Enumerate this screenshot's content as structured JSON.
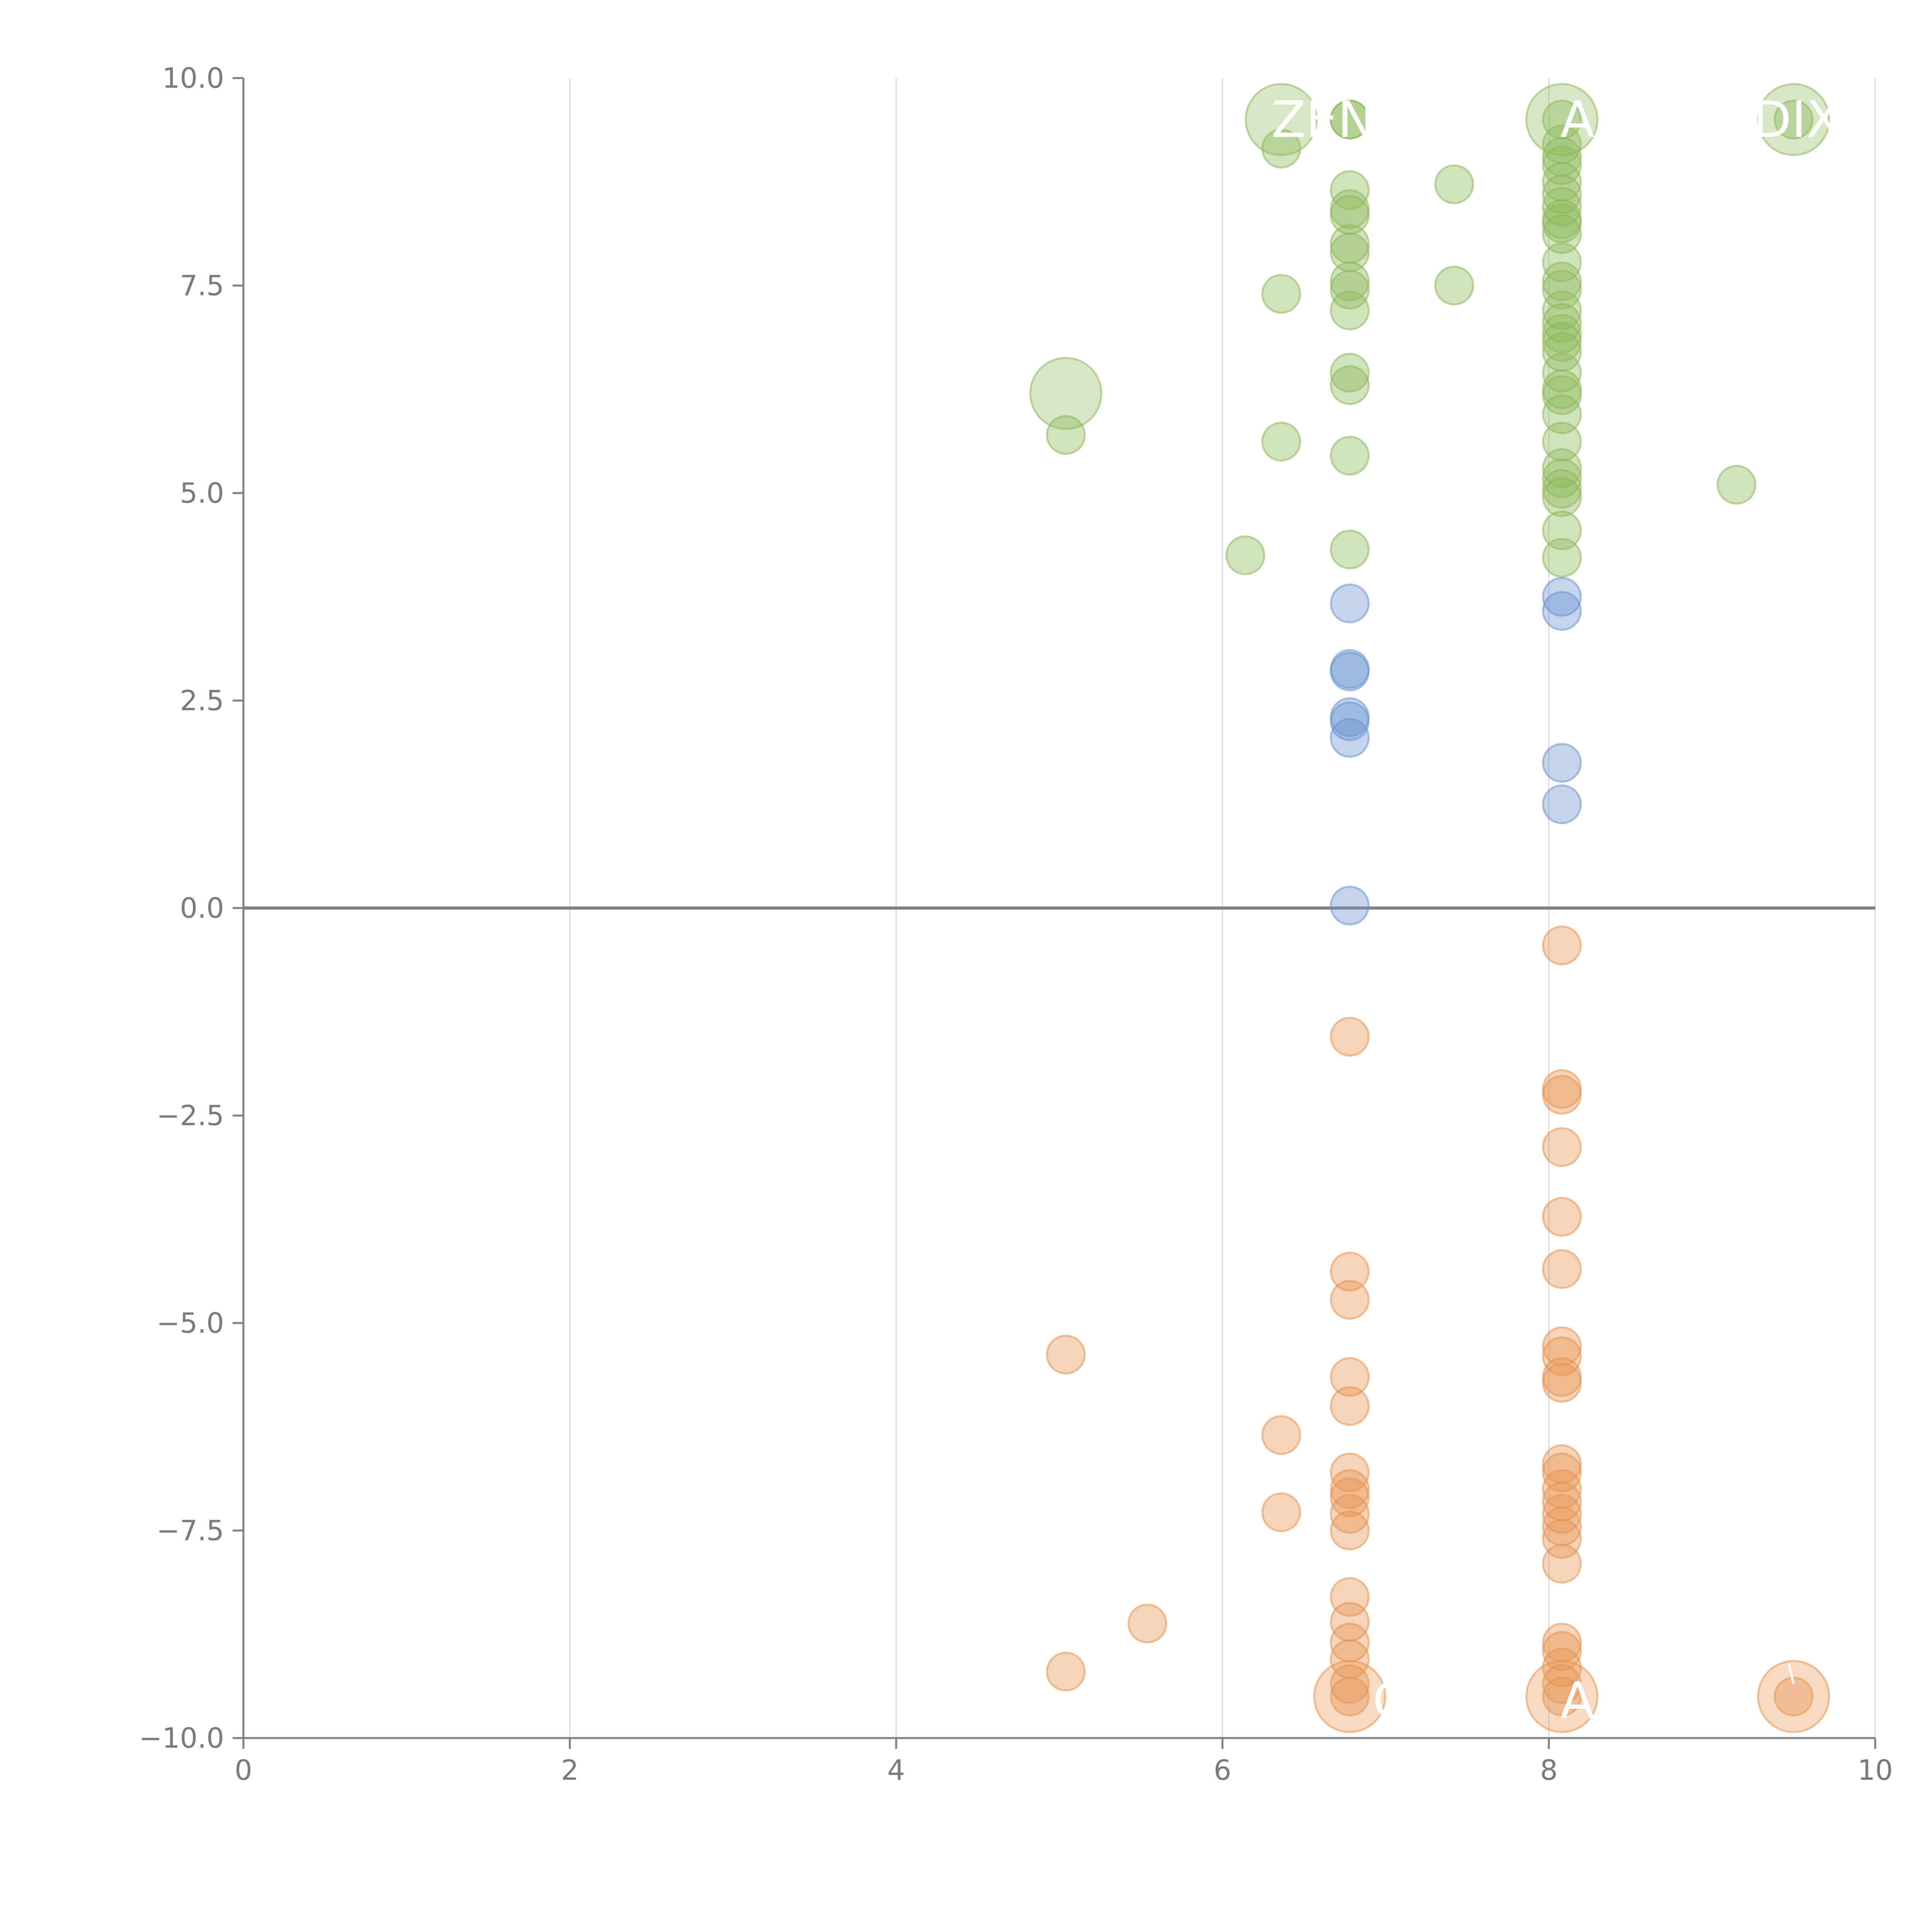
{
  "chart_data": {
    "type": "scatter",
    "title": "",
    "xlabel": "",
    "ylabel": "",
    "xlim": [
      0,
      10
    ],
    "ylim": [
      -10,
      10
    ],
    "x_ticks": [
      "0",
      "2",
      "4",
      "6",
      "8",
      "10"
    ],
    "y_ticks": [
      "10.0",
      "7.5",
      "5.0",
      "2.5",
      "0.0",
      "−2.5",
      "−5.0",
      "−7.5",
      "−10.0"
    ],
    "x_tick_values": [
      0,
      2,
      4,
      6,
      8,
      10
    ],
    "y_tick_values": [
      10,
      7.5,
      5,
      2.5,
      0,
      -2.5,
      -5,
      -7.5,
      -10
    ],
    "grid": "vertical",
    "colors": {
      "green": "#8db85a",
      "blue": "#6a93cf",
      "orange": "#e59450"
    },
    "series": [
      {
        "color": "green",
        "points": [
          [
            6.36,
            9.5,
            3
          ],
          [
            6.78,
            9.5,
            1
          ],
          [
            6.78,
            9.5,
            1
          ],
          [
            8.08,
            9.5,
            3
          ],
          [
            9.5,
            9.5,
            3
          ],
          [
            9.5,
            9.5,
            1
          ],
          [
            6.36,
            9.15,
            1
          ],
          [
            7.42,
            8.72,
            1
          ],
          [
            6.78,
            8.65,
            1
          ],
          [
            6.78,
            8.42,
            1
          ],
          [
            6.78,
            8.35,
            1
          ],
          [
            6.78,
            8.0,
            1
          ],
          [
            6.78,
            7.9,
            1
          ],
          [
            6.78,
            7.55,
            1
          ],
          [
            6.78,
            7.45,
            1
          ],
          [
            6.78,
            7.2,
            1
          ],
          [
            6.36,
            7.4,
            1
          ],
          [
            7.42,
            7.5,
            1
          ],
          [
            6.78,
            6.45,
            1
          ],
          [
            6.78,
            6.3,
            1
          ],
          [
            5.04,
            6.2,
            3
          ],
          [
            5.04,
            5.7,
            1
          ],
          [
            6.36,
            5.62,
            1
          ],
          [
            6.78,
            5.45,
            1
          ],
          [
            6.78,
            4.32,
            1
          ],
          [
            6.14,
            4.25,
            1
          ],
          [
            9.15,
            5.1,
            1
          ],
          [
            8.08,
            9.5,
            1
          ],
          [
            8.08,
            9.2,
            1
          ],
          [
            8.08,
            9.05,
            1
          ],
          [
            8.08,
            8.95,
            1
          ],
          [
            8.08,
            8.75,
            1
          ],
          [
            8.08,
            8.6,
            1
          ],
          [
            8.08,
            8.45,
            1
          ],
          [
            8.08,
            8.3,
            1
          ],
          [
            8.08,
            8.25,
            1
          ],
          [
            8.08,
            8.12,
            1
          ],
          [
            8.08,
            7.78,
            1
          ],
          [
            8.08,
            7.55,
            1
          ],
          [
            8.08,
            7.45,
            1
          ],
          [
            8.08,
            7.2,
            1
          ],
          [
            8.08,
            7.05,
            1
          ],
          [
            8.08,
            6.92,
            1
          ],
          [
            8.08,
            6.82,
            1
          ],
          [
            8.08,
            6.7,
            1
          ],
          [
            8.08,
            6.45,
            1
          ],
          [
            8.08,
            6.25,
            1
          ],
          [
            8.08,
            6.18,
            1
          ],
          [
            8.08,
            5.95,
            1
          ],
          [
            8.08,
            5.62,
            1
          ],
          [
            8.08,
            5.3,
            1
          ],
          [
            8.08,
            5.18,
            1
          ],
          [
            8.08,
            5.05,
            1
          ],
          [
            8.08,
            4.95,
            1
          ],
          [
            8.08,
            4.55,
            1
          ],
          [
            8.08,
            4.22,
            1
          ]
        ]
      },
      {
        "color": "blue",
        "points": [
          [
            6.78,
            3.67,
            1
          ],
          [
            6.78,
            2.88,
            1
          ],
          [
            6.78,
            2.85,
            1
          ],
          [
            6.78,
            2.3,
            1
          ],
          [
            6.78,
            2.25,
            1
          ],
          [
            6.78,
            2.05,
            1
          ],
          [
            6.78,
            0.03,
            1
          ],
          [
            8.08,
            3.75,
            1
          ],
          [
            8.08,
            3.58,
            1
          ],
          [
            8.08,
            1.75,
            1
          ],
          [
            8.08,
            1.25,
            1
          ]
        ]
      },
      {
        "color": "orange",
        "points": [
          [
            8.08,
            -0.45,
            1
          ],
          [
            6.78,
            -1.55,
            1
          ],
          [
            8.08,
            -2.18,
            1
          ],
          [
            8.08,
            -2.25,
            1
          ],
          [
            8.08,
            -2.88,
            1
          ],
          [
            8.08,
            -3.72,
            1
          ],
          [
            8.08,
            -4.35,
            1
          ],
          [
            6.78,
            -4.38,
            1
          ],
          [
            6.78,
            -4.72,
            1
          ],
          [
            5.04,
            -5.38,
            1
          ],
          [
            8.08,
            -5.28,
            1
          ],
          [
            8.08,
            -5.4,
            1
          ],
          [
            8.08,
            -5.65,
            1
          ],
          [
            8.08,
            -5.72,
            1
          ],
          [
            6.78,
            -5.65,
            1
          ],
          [
            6.78,
            -6.0,
            1
          ],
          [
            6.36,
            -6.35,
            1
          ],
          [
            8.08,
            -6.7,
            1
          ],
          [
            8.08,
            -6.8,
            1
          ],
          [
            6.78,
            -6.8,
            1
          ],
          [
            6.78,
            -7.0,
            1
          ],
          [
            6.78,
            -7.1,
            1
          ],
          [
            8.08,
            -7.0,
            1
          ],
          [
            8.08,
            -7.15,
            1
          ],
          [
            8.08,
            -7.3,
            1
          ],
          [
            6.36,
            -7.28,
            1
          ],
          [
            6.78,
            -7.3,
            1
          ],
          [
            8.08,
            -7.45,
            1
          ],
          [
            6.78,
            -7.5,
            1
          ],
          [
            8.08,
            -7.6,
            1
          ],
          [
            8.08,
            -7.9,
            1
          ],
          [
            6.78,
            -8.3,
            1
          ],
          [
            6.78,
            -8.6,
            1
          ],
          [
            5.54,
            -8.62,
            1
          ],
          [
            6.78,
            -8.85,
            1
          ],
          [
            8.08,
            -8.85,
            1
          ],
          [
            8.08,
            -8.95,
            1
          ],
          [
            6.78,
            -9.05,
            1
          ],
          [
            8.08,
            -9.15,
            1
          ],
          [
            5.04,
            -9.2,
            1
          ],
          [
            8.08,
            -9.35,
            1
          ],
          [
            6.78,
            -9.35,
            1
          ],
          [
            6.78,
            -9.5,
            3
          ],
          [
            6.78,
            -9.5,
            1
          ],
          [
            8.08,
            -9.5,
            3
          ],
          [
            8.08,
            -9.5,
            1
          ],
          [
            9.5,
            -9.5,
            3
          ],
          [
            9.5,
            -9.5,
            1
          ]
        ]
      }
    ],
    "annotations": [
      {
        "text": "ZEN",
        "x": 6.3,
        "y": 9.5
      },
      {
        "text": "A",
        "x": 8.07,
        "y": 9.5
      },
      {
        "text": "DIX",
        "x": 9.25,
        "y": 9.5
      },
      {
        "text": "C",
        "x": 6.92,
        "y": -9.55
      },
      {
        "text": "A",
        "x": 8.07,
        "y": -9.55
      }
    ]
  }
}
